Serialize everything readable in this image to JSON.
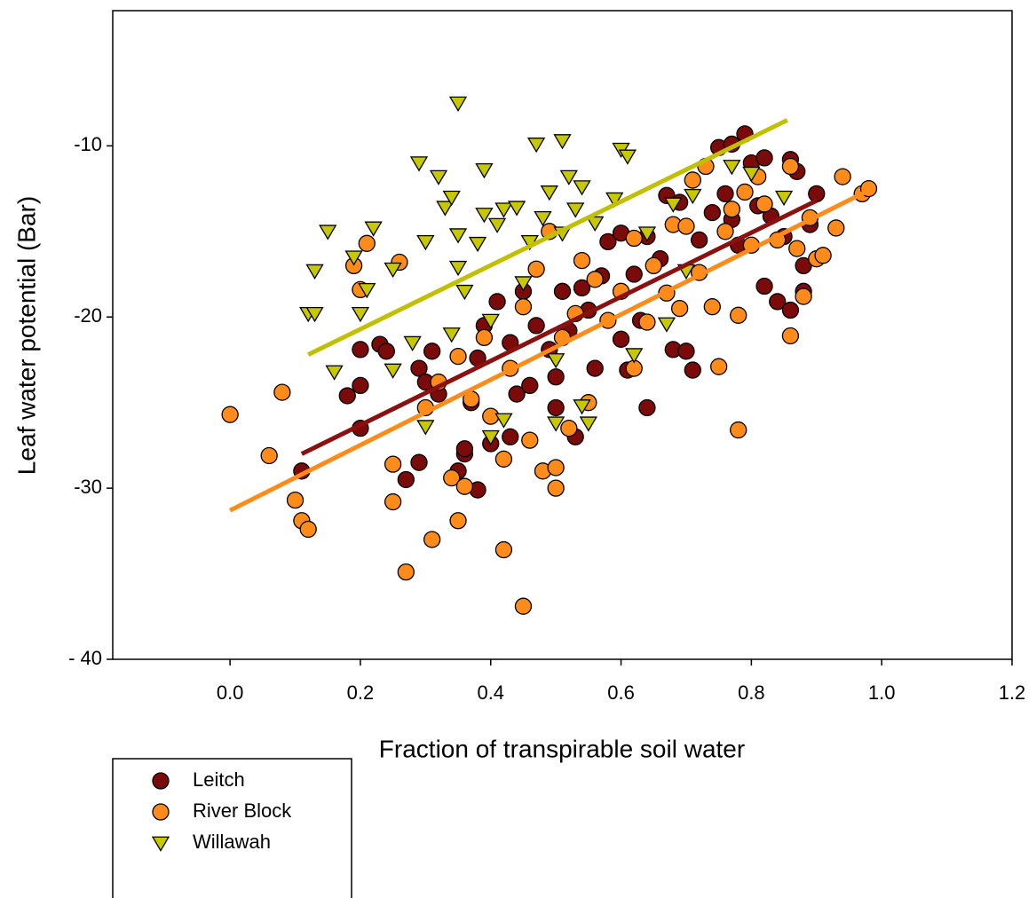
{
  "chart_data": {
    "type": "scatter",
    "xlabel": "Fraction of transpirable soil water",
    "ylabel": "Leaf water potential (Bar)",
    "xlim": [
      -0.18,
      1.2
    ],
    "ylim": [
      -40,
      -2.1
    ],
    "xticks": [
      {
        "value": 0,
        "label": "0.0"
      },
      0.2,
      0.4,
      0.6,
      0.8,
      {
        "value": 1,
        "label": "1.0"
      },
      1.2
    ],
    "yticks": [
      -10,
      -20,
      -30,
      {
        "value": -40,
        "label": "- 40"
      }
    ],
    "edge_color": "#000000",
    "series": [
      {
        "name": "Leitch",
        "color": "#7b0a0a",
        "marker": "circle",
        "x": [
          0.11,
          0.2,
          0.2,
          0.18,
          0.2,
          0.23,
          0.24,
          0.27,
          0.29,
          0.29,
          0.3,
          0.31,
          0.32,
          0.35,
          0.36,
          0.36,
          0.37,
          0.38,
          0.38,
          0.39,
          0.4,
          0.41,
          0.43,
          0.43,
          0.44,
          0.45,
          0.46,
          0.47,
          0.49,
          0.5,
          0.5,
          0.51,
          0.52,
          0.53,
          0.54,
          0.55,
          0.56,
          0.57,
          0.58,
          0.6,
          0.6,
          0.61,
          0.62,
          0.63,
          0.64,
          0.64,
          0.66,
          0.67,
          0.68,
          0.69,
          0.7,
          0.71,
          0.72,
          0.74,
          0.75,
          0.76,
          0.77,
          0.77,
          0.78,
          0.79,
          0.8,
          0.81,
          0.82,
          0.82,
          0.83,
          0.84,
          0.85,
          0.86,
          0.86,
          0.87,
          0.88,
          0.88,
          0.89,
          0.9
        ],
        "values": [
          -29,
          -26.5,
          -24,
          -24.6,
          -21.9,
          -21.6,
          -22,
          -29.5,
          -28.5,
          -23,
          -23.8,
          -22,
          -24.5,
          -29,
          -28,
          -27.7,
          -25,
          -30.1,
          -22.4,
          -20.5,
          -27.4,
          -19.1,
          -27,
          -21.5,
          -24.5,
          -18.5,
          -24,
          -20.5,
          -21.9,
          -25.3,
          -23.5,
          -18.5,
          -20.8,
          -27,
          -18.3,
          -19.6,
          -23,
          -17.6,
          -15.6,
          -21.3,
          -15.1,
          -23.1,
          -17.5,
          -20.2,
          -25.3,
          -15.3,
          -16.6,
          -12.9,
          -21.9,
          -13.3,
          -22,
          -23.1,
          -15.5,
          -13.9,
          -10.1,
          -12.8,
          -14.3,
          -9.9,
          -15.8,
          -9.3,
          -11,
          -13.5,
          -10.7,
          -18.2,
          -14.1,
          -19.1,
          -15.3,
          -10.8,
          -19.6,
          -11.5,
          -17,
          -18.5,
          -14.6,
          -12.8
        ]
      },
      {
        "name": "River Block",
        "color": "#ff8c1a",
        "marker": "circle",
        "x": [
          0,
          0.06,
          0.08,
          0.1,
          0.11,
          0.12,
          0.19,
          0.2,
          0.21,
          0.25,
          0.25,
          0.26,
          0.27,
          0.3,
          0.31,
          0.32,
          0.34,
          0.35,
          0.35,
          0.36,
          0.37,
          0.39,
          0.4,
          0.42,
          0.42,
          0.43,
          0.45,
          0.45,
          0.46,
          0.47,
          0.48,
          0.49,
          0.5,
          0.5,
          0.51,
          0.52,
          0.53,
          0.54,
          0.55,
          0.56,
          0.58,
          0.6,
          0.62,
          0.62,
          0.64,
          0.65,
          0.67,
          0.68,
          0.69,
          0.7,
          0.71,
          0.72,
          0.73,
          0.74,
          0.75,
          0.76,
          0.77,
          0.78,
          0.78,
          0.79,
          0.8,
          0.81,
          0.82,
          0.84,
          0.86,
          0.86,
          0.87,
          0.88,
          0.89,
          0.9,
          0.91,
          0.93,
          0.94,
          0.97,
          0.98
        ],
        "values": [
          -25.7,
          -28.1,
          -24.4,
          -30.7,
          -31.9,
          -32.4,
          -17,
          -18.4,
          -15.7,
          -28.6,
          -30.8,
          -16.8,
          -34.9,
          -25.3,
          -33,
          -23.8,
          -29.4,
          -31.9,
          -22.3,
          -29.9,
          -24.8,
          -21.2,
          -25.8,
          -33.6,
          -28.3,
          -23,
          -36.9,
          -19.4,
          -27.2,
          -17.2,
          -29,
          -15,
          -30,
          -28.8,
          -21.2,
          -26.5,
          -19.8,
          -16.7,
          -25,
          -17.8,
          -20.2,
          -18.5,
          -15.4,
          -23,
          -20.3,
          -17,
          -18.6,
          -14.6,
          -19.5,
          -14.7,
          -12,
          -17.4,
          -11.2,
          -19.4,
          -22.9,
          -15,
          -13.7,
          -26.6,
          -19.9,
          -12.7,
          -15.8,
          -11.8,
          -13.4,
          -15.5,
          -21.1,
          -11.2,
          -16,
          -18.8,
          -14.2,
          -16.6,
          -16.4,
          -14.8,
          -11.8,
          -12.8,
          -12.5
        ]
      },
      {
        "name": "Willawah",
        "color": "#c8c800",
        "marker": "triangle-down",
        "x": [
          0.12,
          0.13,
          0.13,
          0.15,
          0.16,
          0.19,
          0.2,
          0.21,
          0.22,
          0.25,
          0.25,
          0.28,
          0.29,
          0.3,
          0.3,
          0.32,
          0.33,
          0.34,
          0.34,
          0.35,
          0.35,
          0.35,
          0.36,
          0.38,
          0.39,
          0.39,
          0.4,
          0.4,
          0.41,
          0.42,
          0.42,
          0.44,
          0.45,
          0.46,
          0.47,
          0.48,
          0.49,
          0.5,
          0.5,
          0.51,
          0.51,
          0.52,
          0.53,
          0.54,
          0.54,
          0.55,
          0.56,
          0.59,
          0.6,
          0.61,
          0.62,
          0.64,
          0.67,
          0.68,
          0.7,
          0.71,
          0.77,
          0.8,
          0.85
        ],
        "values": [
          -19.8,
          -19.8,
          -17.3,
          -15,
          -23.2,
          -16.5,
          -19.8,
          -18.4,
          -14.8,
          -23.1,
          -17.2,
          -21.5,
          -11,
          -15.6,
          -26.4,
          -11.8,
          -13.6,
          -21,
          -13,
          -7.5,
          -17.1,
          -15.2,
          -18.5,
          -15.7,
          -14,
          -11.4,
          -20.2,
          -27,
          -14.6,
          -13.7,
          -26,
          -13.6,
          -18,
          -15.6,
          -9.9,
          -14.2,
          -12.7,
          -22.5,
          -26.2,
          -9.7,
          -15.1,
          -11.8,
          -13.7,
          -25.2,
          -12.4,
          -26.2,
          -14.5,
          -13.1,
          -10.2,
          -10.6,
          -22.2,
          -15.1,
          -20.4,
          -13.4,
          -17.3,
          -12.9,
          -11.2,
          -11.6,
          -13
        ]
      }
    ],
    "trend_lines": [
      {
        "color": "#c0c000",
        "x": [
          0.12,
          0.855
        ],
        "values": [
          -22.2,
          -8.5
        ]
      },
      {
        "color": "#8b1010",
        "x": [
          0.11,
          0.9
        ],
        "values": [
          -28,
          -13.2
        ]
      },
      {
        "color": "#ff8c1a",
        "x": [
          0,
          0.98
        ],
        "values": [
          -31.3,
          -12.6
        ]
      }
    ]
  }
}
